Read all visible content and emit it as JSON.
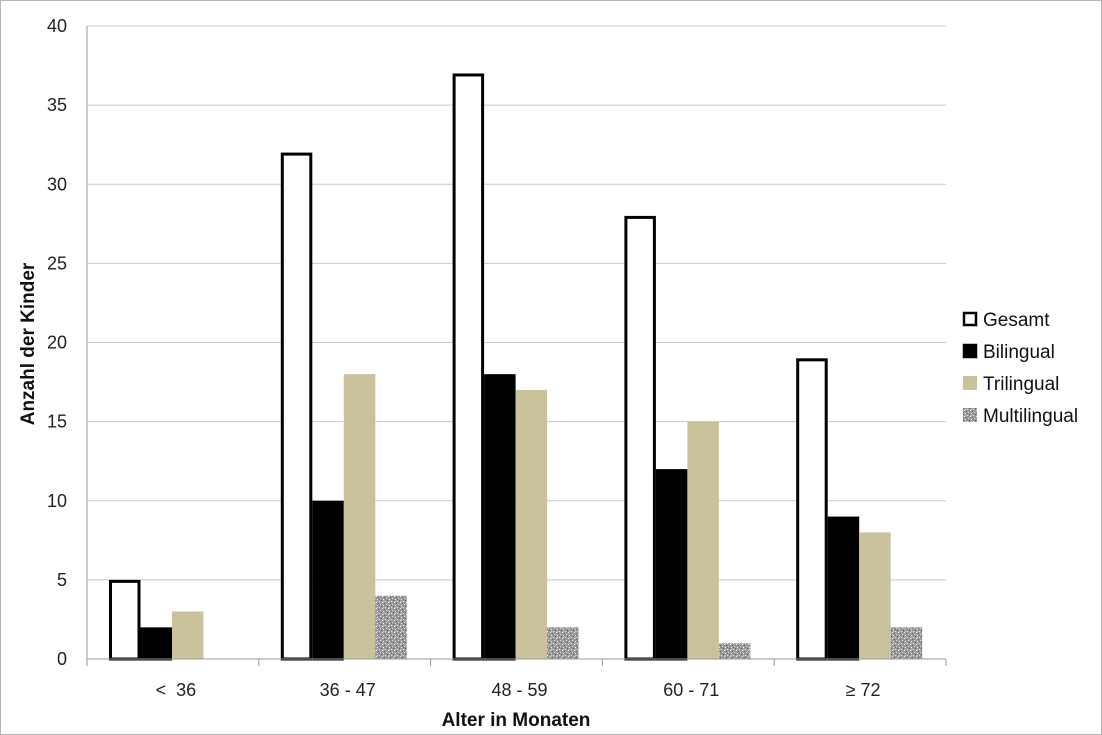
{
  "chart_data": {
    "type": "bar",
    "title": "",
    "xlabel": "Alter in Monaten",
    "ylabel": "Anzahl der Kinder",
    "ylim": [
      0,
      40
    ],
    "yticks": [
      0,
      5,
      10,
      15,
      20,
      25,
      30,
      35,
      40
    ],
    "grid": true,
    "legend_position": "right",
    "categories": [
      "<  36",
      "36 - 47",
      "48 - 59",
      "60 - 71",
      "≥ 72"
    ],
    "series": [
      {
        "name": "Gesamt",
        "values": [
          5,
          32,
          37,
          28,
          19
        ],
        "fill": "#ffffff",
        "stroke": "#000000",
        "pattern": "none"
      },
      {
        "name": "Bilingual",
        "values": [
          2,
          10,
          18,
          12,
          9
        ],
        "fill": "#000000",
        "stroke": "#000000",
        "pattern": "none"
      },
      {
        "name": "Trilingual",
        "values": [
          3,
          18,
          17,
          15,
          8
        ],
        "fill": "#c9c29c",
        "stroke": "none",
        "pattern": "none"
      },
      {
        "name": "Multilingual",
        "values": [
          0,
          4,
          2,
          1,
          2
        ],
        "fill": "#a6a6a6",
        "stroke": "none",
        "pattern": "speckle"
      }
    ]
  }
}
